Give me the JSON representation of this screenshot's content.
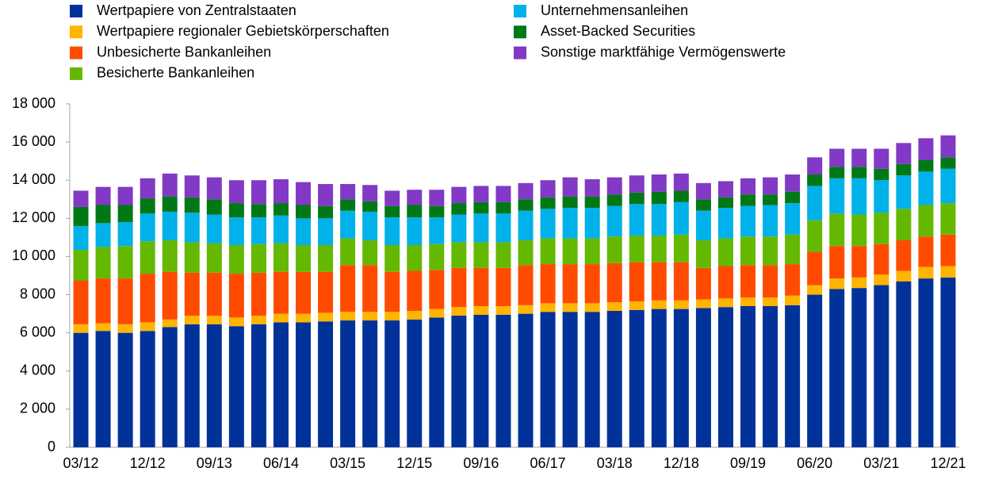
{
  "chart_data": {
    "type": "stacked_bar",
    "categories": [
      "03/12",
      null,
      null,
      "12/12",
      null,
      null,
      "09/13",
      null,
      null,
      "06/14",
      null,
      null,
      "03/15",
      null,
      null,
      "12/15",
      null,
      null,
      "09/16",
      null,
      null,
      "06/17",
      null,
      null,
      "03/18",
      null,
      null,
      "12/18",
      null,
      null,
      "09/19",
      null,
      null,
      "06/20",
      null,
      null,
      "03/21",
      null,
      null,
      "12/21"
    ],
    "ylim": [
      0,
      18000
    ],
    "yticks": [
      0,
      {
        "value": 2000,
        "label": "2 000"
      },
      {
        "value": 4000,
        "label": "4 000"
      },
      {
        "value": 6000,
        "label": "6 000"
      },
      {
        "value": 8000,
        "label": "8 000"
      },
      {
        "value": 10000,
        "label": "10 000"
      },
      {
        "value": 12000,
        "label": "12 000"
      },
      {
        "value": 14000,
        "label": "14 000"
      },
      {
        "value": 16000,
        "label": "16 000"
      },
      {
        "value": 18000,
        "label": "18 000"
      }
    ],
    "series": [
      {
        "name": "Wertpapiere von Zentralstaaten",
        "color": "#003299",
        "values": [
          6000,
          6100,
          6000,
          6100,
          6300,
          6450,
          6450,
          6350,
          6450,
          6550,
          6550,
          6600,
          6650,
          6650,
          6650,
          6700,
          6800,
          6900,
          6950,
          6950,
          7000,
          7100,
          7100,
          7100,
          7150,
          7200,
          7250,
          7250,
          7300,
          7350,
          7400,
          7400,
          7450,
          8000,
          8300,
          8350,
          8500,
          8700,
          8850,
          8900
        ]
      },
      {
        "name": "Wertpapiere regionaler Gebietskörperschaften",
        "color": "#ffb400",
        "values": [
          450,
          400,
          450,
          450,
          400,
          450,
          450,
          450,
          450,
          450,
          450,
          450,
          450,
          450,
          450,
          450,
          450,
          450,
          450,
          450,
          450,
          450,
          450,
          450,
          450,
          450,
          450,
          450,
          450,
          450,
          450,
          450,
          500,
          500,
          550,
          550,
          550,
          550,
          600,
          600
        ]
      },
      {
        "name": "Unbesicherte Bankanleihen",
        "color": "#ff4b00",
        "values": [
          2300,
          2350,
          2400,
          2550,
          2500,
          2250,
          2250,
          2300,
          2250,
          2200,
          2200,
          2150,
          2450,
          2450,
          2100,
          2100,
          2050,
          2050,
          2000,
          2000,
          2100,
          2050,
          2050,
          2050,
          2050,
          2050,
          2000,
          2000,
          1650,
          1700,
          1700,
          1700,
          1650,
          1750,
          1700,
          1650,
          1600,
          1600,
          1600,
          1650
        ]
      },
      {
        "name": "Besicherte Bankanleihen",
        "color": "#65b800",
        "values": [
          1600,
          1650,
          1700,
          1700,
          1650,
          1600,
          1550,
          1500,
          1500,
          1500,
          1400,
          1400,
          1400,
          1300,
          1400,
          1350,
          1350,
          1350,
          1350,
          1350,
          1300,
          1350,
          1350,
          1350,
          1400,
          1400,
          1400,
          1450,
          1450,
          1450,
          1500,
          1500,
          1550,
          1650,
          1700,
          1650,
          1650,
          1650,
          1650,
          1650
        ]
      },
      {
        "name": "Unternehmensanleihen",
        "color": "#00b1ea",
        "values": [
          1250,
          1250,
          1250,
          1450,
          1500,
          1550,
          1500,
          1450,
          1400,
          1450,
          1400,
          1400,
          1450,
          1500,
          1450,
          1450,
          1400,
          1450,
          1500,
          1500,
          1550,
          1550,
          1600,
          1600,
          1600,
          1650,
          1650,
          1700,
          1550,
          1600,
          1600,
          1650,
          1650,
          1800,
          1850,
          1900,
          1700,
          1750,
          1750,
          1800
        ]
      },
      {
        "name": "Asset-Backed Securities",
        "color": "#007816",
        "values": [
          1000,
          950,
          900,
          800,
          800,
          800,
          800,
          750,
          700,
          650,
          700,
          650,
          600,
          550,
          600,
          650,
          600,
          600,
          600,
          600,
          600,
          600,
          600,
          600,
          600,
          600,
          650,
          600,
          600,
          550,
          600,
          550,
          600,
          600,
          600,
          600,
          600,
          600,
          600,
          600
        ]
      },
      {
        "name": "Sonstige marktfähige Vermögenswerte",
        "color": "#8139c6",
        "values": [
          850,
          950,
          950,
          1050,
          1200,
          1150,
          1150,
          1200,
          1250,
          1250,
          1200,
          1150,
          800,
          850,
          800,
          800,
          850,
          850,
          850,
          850,
          850,
          900,
          1000,
          900,
          900,
          900,
          900,
          900,
          850,
          850,
          850,
          900,
          900,
          900,
          950,
          950,
          1050,
          1100,
          1150,
          1150
        ]
      }
    ]
  }
}
